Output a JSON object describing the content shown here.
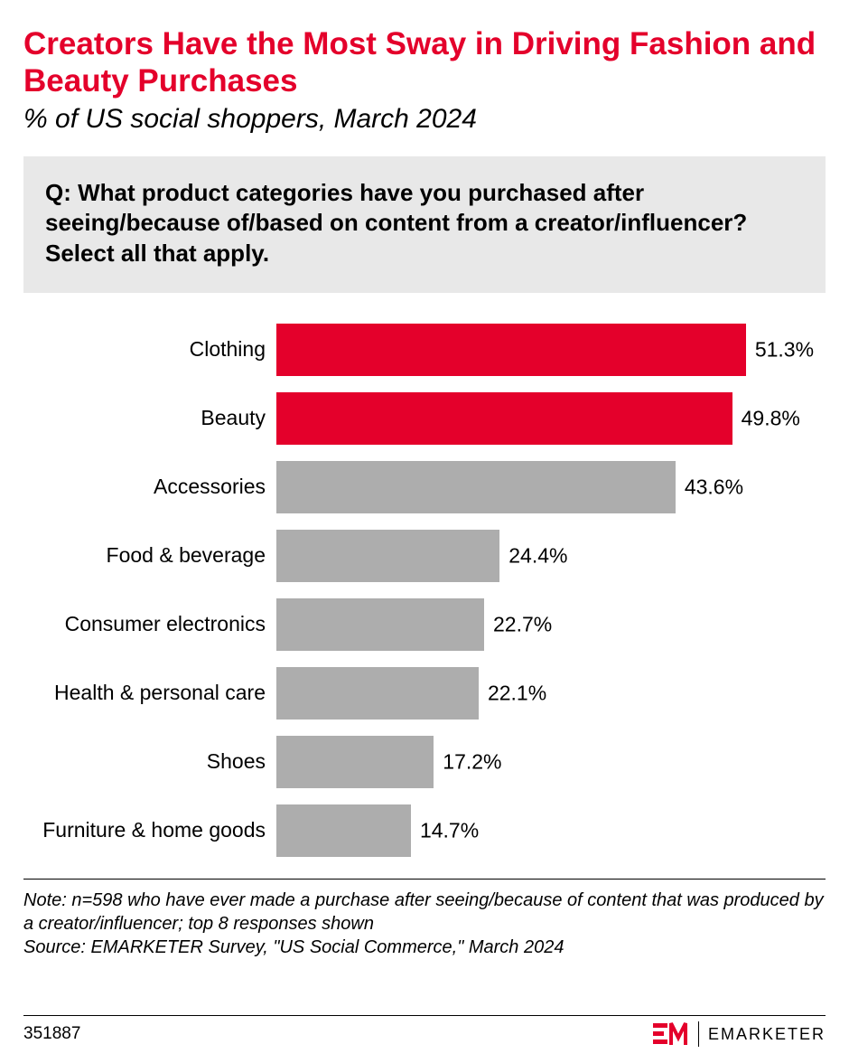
{
  "header": {
    "title": "Creators Have the Most Sway in Driving Fashion and Beauty Purchases",
    "subtitle": "% of US social shoppers, March 2024",
    "title_color": "#e4002b",
    "subtitle_color": "#000000"
  },
  "question": {
    "text": "Q: What product categories have you purchased after seeing/because of/based on content from a creator/influencer? Select all that apply.",
    "background": "#e8e8e8"
  },
  "chart": {
    "type": "bar",
    "max_value": 60,
    "highlight_color": "#e4002b",
    "default_color": "#adadad",
    "value_suffix": "%",
    "bars": [
      {
        "label": "Clothing",
        "value": 51.3,
        "highlight": true
      },
      {
        "label": "Beauty",
        "value": 49.8,
        "highlight": true
      },
      {
        "label": "Accessories",
        "value": 43.6,
        "highlight": false
      },
      {
        "label": "Food & beverage",
        "value": 24.4,
        "highlight": false
      },
      {
        "label": "Consumer electronics",
        "value": 22.7,
        "highlight": false
      },
      {
        "label": "Health & personal care",
        "value": 22.1,
        "highlight": false
      },
      {
        "label": "Shoes",
        "value": 17.2,
        "highlight": false
      },
      {
        "label": "Furniture & home goods",
        "value": 14.7,
        "highlight": false
      }
    ]
  },
  "footer": {
    "note": "Note: n=598 who have ever made a purchase after seeing/because of content that was produced by a creator/influencer; top 8 responses shown",
    "source": "Source: EMARKETER Survey, \"US Social Commerce,\" March 2024",
    "chart_id": "351887",
    "brand": "EMARKETER",
    "brand_color": "#e4002b"
  }
}
